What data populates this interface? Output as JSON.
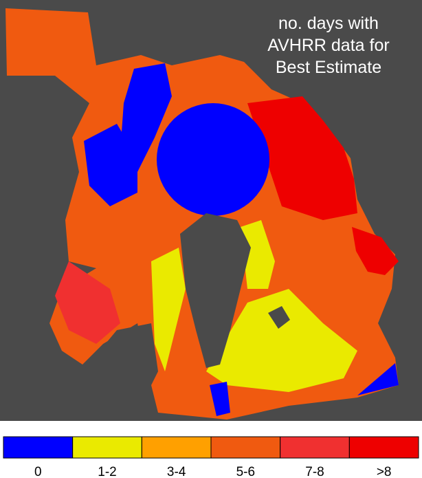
{
  "title": {
    "lines": [
      "no. days with",
      "AVHRR data for",
      "Best Estimate"
    ]
  },
  "legend": {
    "items": [
      {
        "label": "0",
        "color": "#0000ff"
      },
      {
        "label": "1-2",
        "color": "#eaea00"
      },
      {
        "label": "3-4",
        "color": "#ffa000"
      },
      {
        "label": "5-6",
        "color": "#f05a10"
      },
      {
        "label": "7-8",
        "color": "#f03030"
      },
      {
        "label": ">8",
        "color": "#ee0000"
      }
    ]
  }
}
